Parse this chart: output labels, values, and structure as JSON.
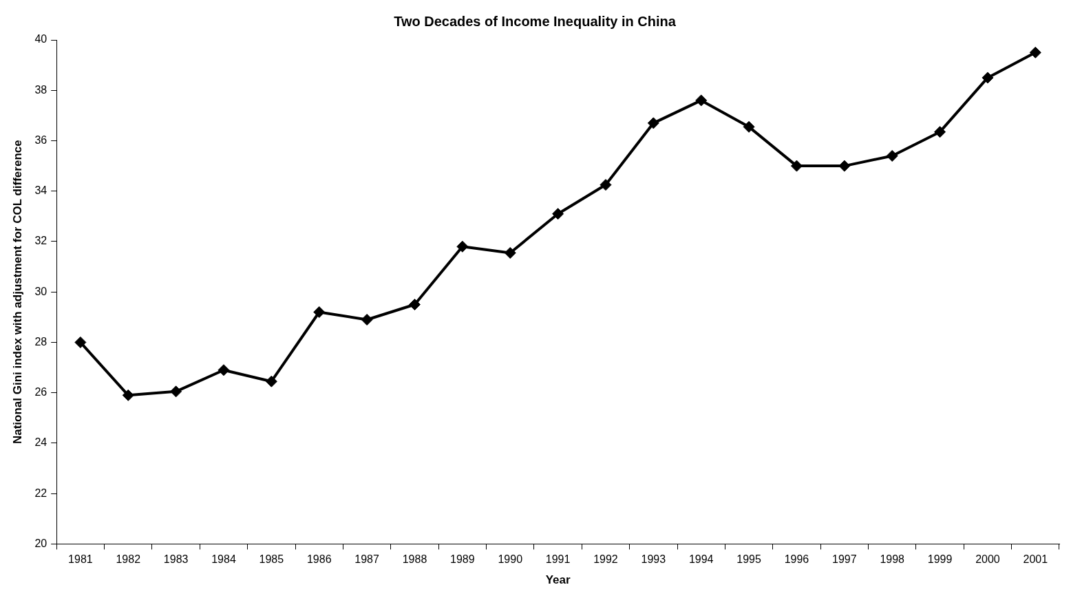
{
  "chart_data": {
    "type": "line",
    "title": "Two Decades of Income Inequality in China",
    "xlabel": "Year",
    "ylabel": "National Gini index with adjustment for COL difference",
    "categories": [
      "1981",
      "1982",
      "1983",
      "1984",
      "1985",
      "1986",
      "1987",
      "1988",
      "1989",
      "1990",
      "1991",
      "1992",
      "1993",
      "1994",
      "1995",
      "1996",
      "1997",
      "1998",
      "1999",
      "2000",
      "2001"
    ],
    "series": [
      {
        "color": "#000000",
        "values": [
          28.0,
          25.9,
          26.05,
          26.9,
          26.45,
          29.2,
          28.9,
          29.5,
          31.8,
          31.55,
          33.1,
          34.25,
          36.7,
          37.6,
          36.55,
          35.0,
          35.0,
          35.4,
          36.35,
          38.5,
          39.5
        ]
      }
    ],
    "ylim": [
      20,
      40
    ],
    "yticks": [
      20,
      22,
      24,
      26,
      28,
      30,
      32,
      34,
      36,
      38,
      40
    ],
    "grid": false,
    "legend": false,
    "marker": "diamond",
    "line_style": "solid"
  }
}
